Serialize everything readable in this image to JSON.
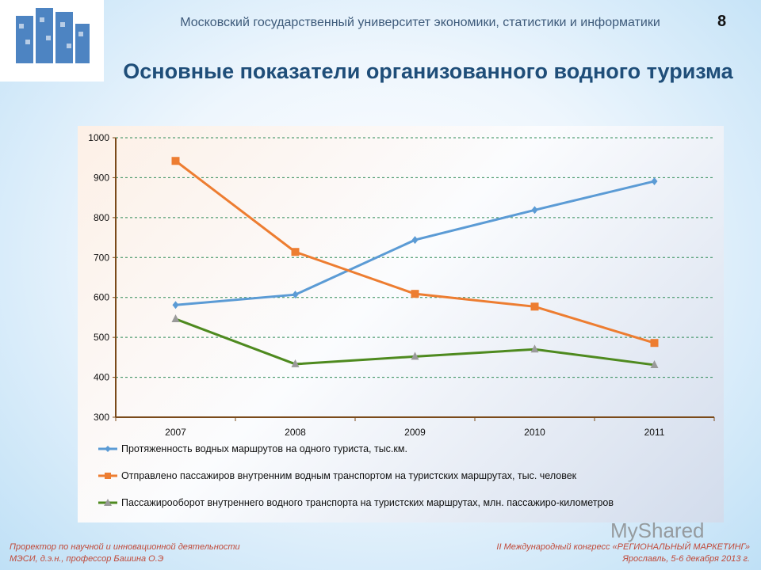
{
  "header": {
    "university": "Московский государственный университет экономики, статистики и информатики",
    "page_number": "8"
  },
  "title": "Основные показатели организованного водного туризма",
  "chart_data": {
    "type": "line",
    "categories": [
      "2007",
      "2008",
      "2009",
      "2010",
      "2011"
    ],
    "ylim": [
      300,
      1000
    ],
    "yticks": [
      "300",
      "400",
      "500",
      "600",
      "700",
      "800",
      "900",
      "1000"
    ],
    "grid": true,
    "legend_position": "bottom",
    "series": [
      {
        "name": "Протяженность водных маршрутов на одного туриста, тыс.км.",
        "values": [
          581,
          607,
          744,
          819,
          891
        ],
        "color": "#5b9bd5",
        "marker": "diamond"
      },
      {
        "name": "Отправлено пассажиров внутренним водным транспортом на туристских маршрутах,  тыс. человек",
        "values": [
          942,
          714,
          609,
          577,
          486
        ],
        "color": "#ed7d31",
        "marker": "square"
      },
      {
        "name": "Пассажирооборот внутреннего водного транспорта  на туристских маршрутах, млн. пассажиро-километров",
        "values": [
          546,
          433,
          452,
          470,
          431
        ],
        "color": "#4e8a1f",
        "marker": "triangle"
      }
    ]
  },
  "footer": {
    "left1": "Проректор  по научной и инновационной  деятельности",
    "left2": "МЭСИ,  д.э.н., профессор Башина О.Э",
    "right1": "II Международный  конгресс «РЕГИОНАЛЬНЫЙ МАРКЕТИНГ»",
    "right2": "Ярославль, 5-6 декабря  2013 г."
  },
  "watermark": "MyShared"
}
